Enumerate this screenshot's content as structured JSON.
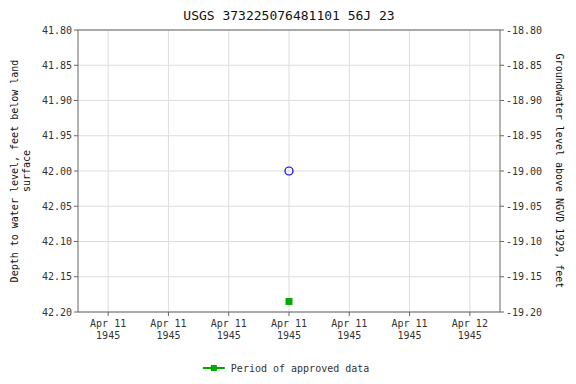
{
  "chart_data": {
    "type": "scatter",
    "title": "USGS 373225076481101 56J 23",
    "y_label": "Depth to water level, feet below land\nsurface",
    "y2_label": "Groundwater level above NGVD 1929, feet",
    "categories": [
      "Apr 11\n1945",
      "Apr 11\n1945",
      "Apr 11\n1945",
      "Apr 11\n1945",
      "Apr 11\n1945",
      "Apr 11\n1945",
      "Apr 12\n1945"
    ],
    "series": [
      {
        "color": "blue",
        "marker": "circle",
        "values": [
          null,
          null,
          null,
          42.0,
          null,
          null,
          null
        ]
      },
      {
        "name": "Period of approved data",
        "color": "#00aa00",
        "marker": "square",
        "values": [
          null,
          null,
          null,
          42.185,
          null,
          null,
          null
        ]
      }
    ],
    "ylim": [
      42.2,
      41.8
    ],
    "yticks": [
      {
        "value": 41.8,
        "label": "41.80"
      },
      {
        "value": 41.85,
        "label": "41.85"
      },
      {
        "value": 41.9,
        "label": "41.90"
      },
      {
        "value": 41.95,
        "label": "41.95"
      },
      {
        "value": 42.0,
        "label": "42.00"
      },
      {
        "value": 42.05,
        "label": "42.05"
      },
      {
        "value": 42.1,
        "label": "42.10"
      },
      {
        "value": 42.15,
        "label": "42.15"
      },
      {
        "value": 42.2,
        "label": "42.20"
      }
    ],
    "y2lim": [
      -19.2,
      -18.8
    ],
    "y2ticks": [
      {
        "value": -18.8,
        "label": "-18.80"
      },
      {
        "value": -18.85,
        "label": "-18.85"
      },
      {
        "value": -18.9,
        "label": "-18.90"
      },
      {
        "value": -18.95,
        "label": "-18.95"
      },
      {
        "value": -19.0,
        "label": "-19.00"
      },
      {
        "value": -19.05,
        "label": "-19.05"
      },
      {
        "value": -19.1,
        "label": "-19.10"
      },
      {
        "value": -19.15,
        "label": "-19.15"
      },
      {
        "value": -19.2,
        "label": "-19.20"
      }
    ],
    "grid": true,
    "legend": "bottom"
  }
}
